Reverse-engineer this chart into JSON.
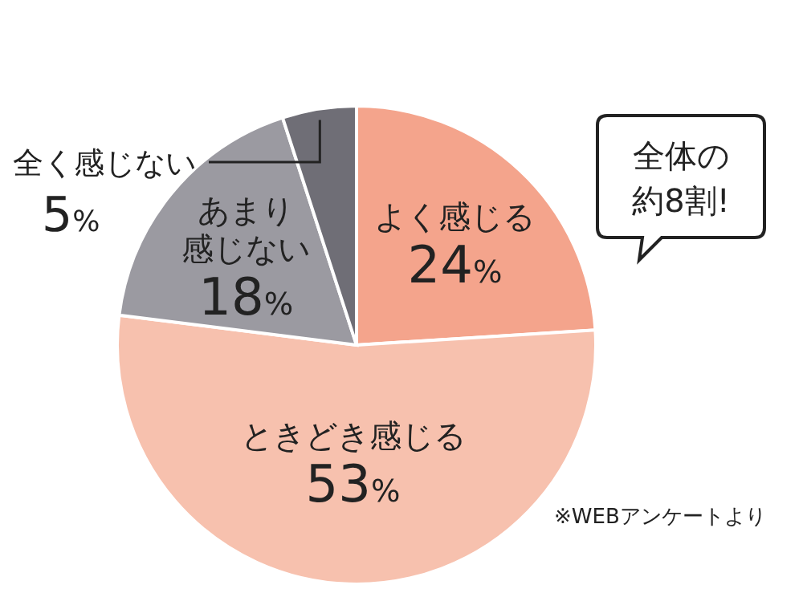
{
  "chart_data": {
    "type": "pie",
    "categories": [
      "よく感じる",
      "ときどき感じる",
      "あまり感じない",
      "全く感じない"
    ],
    "values": [
      24,
      53,
      18,
      5
    ],
    "value_labels": [
      "24%",
      "53%",
      "18%",
      "5%"
    ],
    "colors": [
      "#f4a48c",
      "#f7c1ae",
      "#9b9aa1",
      "#6f6e76"
    ],
    "annotations": [
      "全体の約8割!",
      "※WEBアンケートより"
    ]
  }
}
